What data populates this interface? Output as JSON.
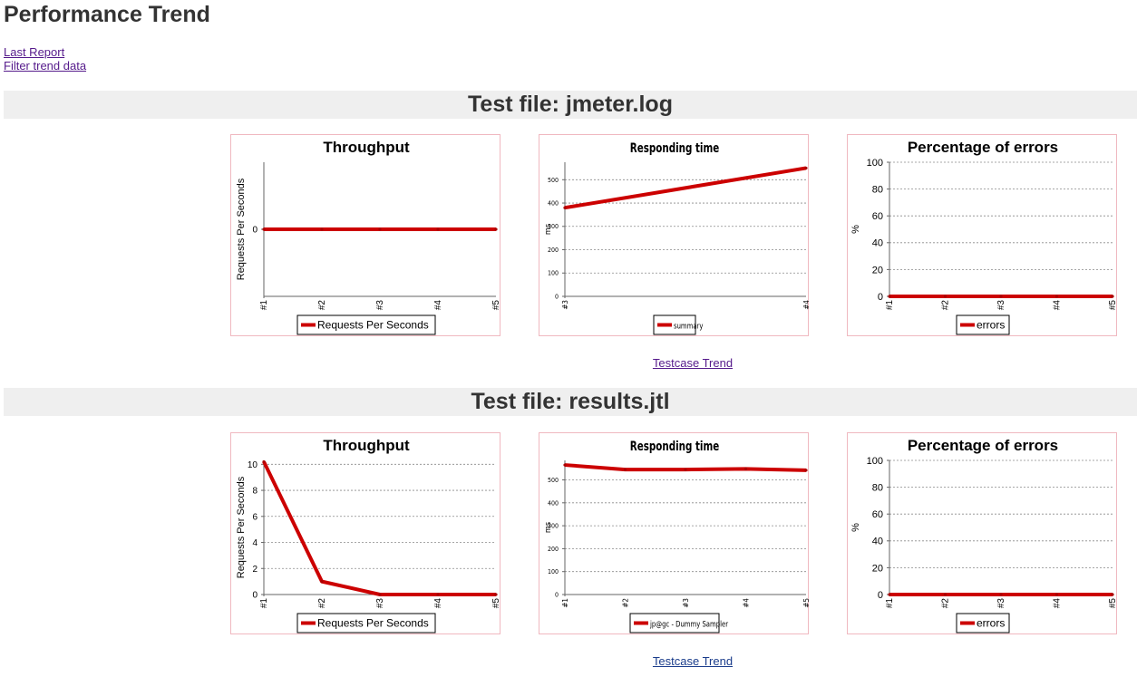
{
  "page": {
    "title": "Performance Trend",
    "links": {
      "last_report": "Last Report",
      "filter_trend": "Filter trend data"
    }
  },
  "colors": {
    "series": "#cc0000",
    "chart_border": "#f0b8c0",
    "header_bg": "#efefef",
    "grid": "#8a8a8a"
  },
  "sections": [
    {
      "header": "Test file: jmeter.log",
      "trend_link": "Testcase Trend"
    },
    {
      "header": "Test file: results.jtl",
      "trend_link": "Testcase Trend"
    }
  ],
  "chart_data": [
    {
      "type": "line",
      "title": "Throughput",
      "ylabel": "Requests Per Seconds",
      "categories": [
        "#1",
        "#2",
        "#3",
        "#4",
        "#5"
      ],
      "series": [
        {
          "name": "Requests Per Seconds",
          "values": [
            0,
            0,
            0,
            0,
            0
          ]
        }
      ],
      "yticks": [
        0
      ],
      "grid": false,
      "legend": "bottom"
    },
    {
      "type": "line",
      "title": "Responding time",
      "ylabel": "ms",
      "categories": [
        "#3",
        "#4"
      ],
      "series": [
        {
          "name": "summary",
          "values": [
            380,
            550
          ]
        }
      ],
      "ylim": [
        0,
        575
      ],
      "yticks": [
        0,
        100,
        200,
        300,
        400,
        500
      ],
      "grid": true,
      "legend": "bottom"
    },
    {
      "type": "line",
      "title": "Percentage of errors",
      "ylabel": "%",
      "categories": [
        "#1",
        "#2",
        "#3",
        "#4",
        "#5"
      ],
      "series": [
        {
          "name": "errors",
          "values": [
            0,
            0,
            0,
            0,
            0
          ]
        }
      ],
      "ylim": [
        0,
        100
      ],
      "yticks": [
        0,
        20,
        40,
        60,
        80,
        100
      ],
      "grid": true,
      "legend": "bottom"
    },
    {
      "type": "line",
      "title": "Throughput",
      "ylabel": "Requests Per Seconds",
      "categories": [
        "#1",
        "#2",
        "#3",
        "#4",
        "#5"
      ],
      "series": [
        {
          "name": "Requests Per Seconds",
          "values": [
            10.2,
            1,
            0,
            0,
            0
          ]
        }
      ],
      "ylim": [
        0,
        10.3
      ],
      "yticks": [
        0,
        2,
        4,
        6,
        8,
        10
      ],
      "grid": true,
      "legend": "bottom"
    },
    {
      "type": "line",
      "title": "Responding time",
      "ylabel": "ms",
      "categories": [
        "#1",
        "#2",
        "#3",
        "#4",
        "#5"
      ],
      "series": [
        {
          "name": "jp@gc - Dummy Sampler",
          "values": [
            565,
            545,
            545,
            548,
            542
          ]
        }
      ],
      "ylim": [
        0,
        585
      ],
      "yticks": [
        0,
        100,
        200,
        300,
        400,
        500
      ],
      "grid": true,
      "legend": "bottom"
    },
    {
      "type": "line",
      "title": "Percentage of errors",
      "ylabel": "%",
      "categories": [
        "#1",
        "#2",
        "#3",
        "#4",
        "#5"
      ],
      "series": [
        {
          "name": "errors",
          "values": [
            0,
            0,
            0,
            0,
            0
          ]
        }
      ],
      "ylim": [
        0,
        100
      ],
      "yticks": [
        0,
        20,
        40,
        60,
        80,
        100
      ],
      "grid": true,
      "legend": "bottom"
    }
  ]
}
